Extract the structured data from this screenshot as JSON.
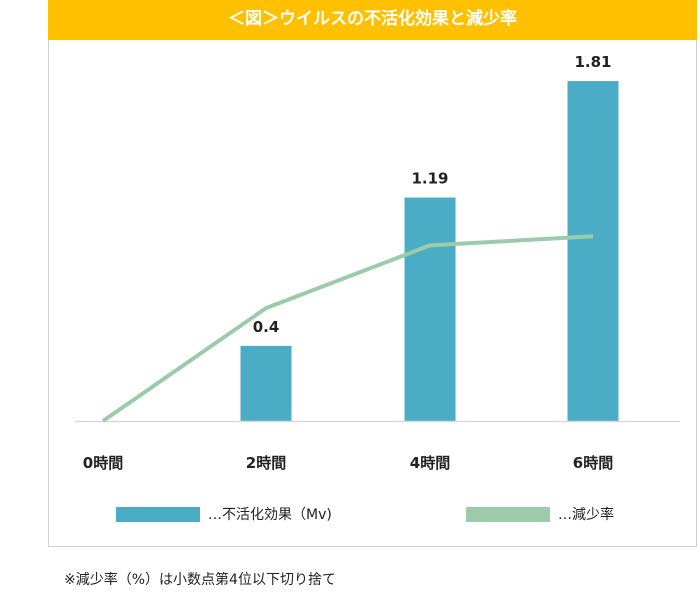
{
  "chart_data": {
    "type": "bar",
    "title": "＜図＞ウイルスの不活化効果と減少率",
    "categories": [
      "0時間",
      "2時間",
      "4時間",
      "6時間"
    ],
    "series": [
      {
        "name": "…不活化効果（Mv)",
        "type": "bar",
        "values": [
          0,
          0.4,
          1.19,
          1.81
        ],
        "labels": [
          "",
          "0.4",
          "1.19",
          "1.81"
        ],
        "color": "#4BACC6"
      },
      {
        "name": "…減少率",
        "type": "line",
        "values": [
          0,
          60.1,
          93.5,
          98.4
        ],
        "unit": "%",
        "color": "#9BCBA8"
      }
    ],
    "grid": false,
    "legend": "bottom",
    "note": "※減少率（%）は小数点第4位以下切り捨て"
  }
}
